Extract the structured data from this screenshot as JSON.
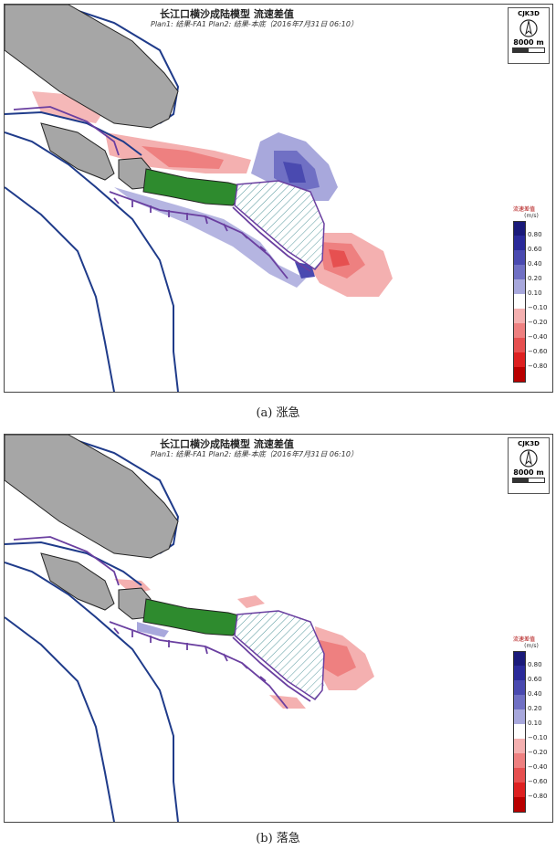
{
  "panels": [
    {
      "id": "a",
      "title": "长江口横沙成陆模型 流速差值",
      "subtitle": "Plan1: 结果-FA1 Plan2: 结果-本底（2016年7月31日 06:10）",
      "compass": {
        "label": "CJK3D",
        "scale": "8000 m"
      },
      "legend": {
        "title": "流速差值",
        "unit": "(m/s)",
        "ticks": [
          "0.80",
          "0.60",
          "0.40",
          "0.20",
          "0.10",
          "−0.10",
          "−0.20",
          "−0.40",
          "−0.60",
          "−0.80"
        ]
      },
      "caption": "(a) 涨急"
    },
    {
      "id": "b",
      "title": "长江口横沙成陆模型 流速差值",
      "subtitle": "Plan1: 结果-FA1 Plan2: 结果-本底（2016年7月31日 06:10）",
      "compass": {
        "label": "CJK3D",
        "scale": "8000 m"
      },
      "legend": {
        "title": "流速差值",
        "unit": "(m/s)",
        "ticks": [
          "0.80",
          "0.60",
          "0.40",
          "0.20",
          "0.10",
          "−0.10",
          "−0.20",
          "−0.40",
          "−0.60",
          "−0.80"
        ]
      },
      "caption": "(b) 落急"
    }
  ],
  "colors": {
    "legend_scale": [
      "#1a1a7a",
      "#2a2a9a",
      "#4a4ab0",
      "#7070c4",
      "#a8a8dc",
      "#ffffff",
      "#f4b0b0",
      "#ee8080",
      "#e65050",
      "#dd2020",
      "#b80000"
    ],
    "coastline": "#1f3b8a",
    "island_fill": "#a6a6a6",
    "land_fill": "#2e8b2e",
    "dike": "#6a3fa0"
  }
}
